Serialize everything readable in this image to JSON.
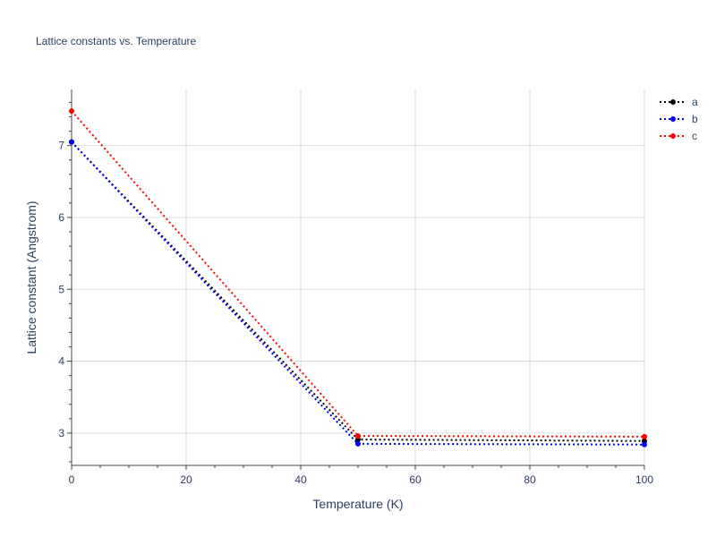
{
  "chart_data": {
    "type": "line",
    "title": "Lattice constants vs. Temperature",
    "xlabel": "Temperature (K)",
    "ylabel": "Lattice constant (Angstrom)",
    "xlim": [
      0,
      100
    ],
    "ylim": [
      2.55,
      7.78
    ],
    "xticks": [
      0,
      20,
      40,
      60,
      80,
      100
    ],
    "yticks": [
      3,
      4,
      5,
      6,
      7
    ],
    "grid": true,
    "legend_position": "top-right",
    "line_style": "dotted",
    "x": [
      0,
      50,
      100
    ],
    "series": [
      {
        "name": "a",
        "color": "#000000",
        "values": [
          7.05,
          2.91,
          2.89
        ]
      },
      {
        "name": "b",
        "color": "#0000ff",
        "values": [
          7.05,
          2.85,
          2.84
        ]
      },
      {
        "name": "c",
        "color": "#ff0000",
        "values": [
          7.48,
          2.96,
          2.95
        ]
      }
    ]
  }
}
